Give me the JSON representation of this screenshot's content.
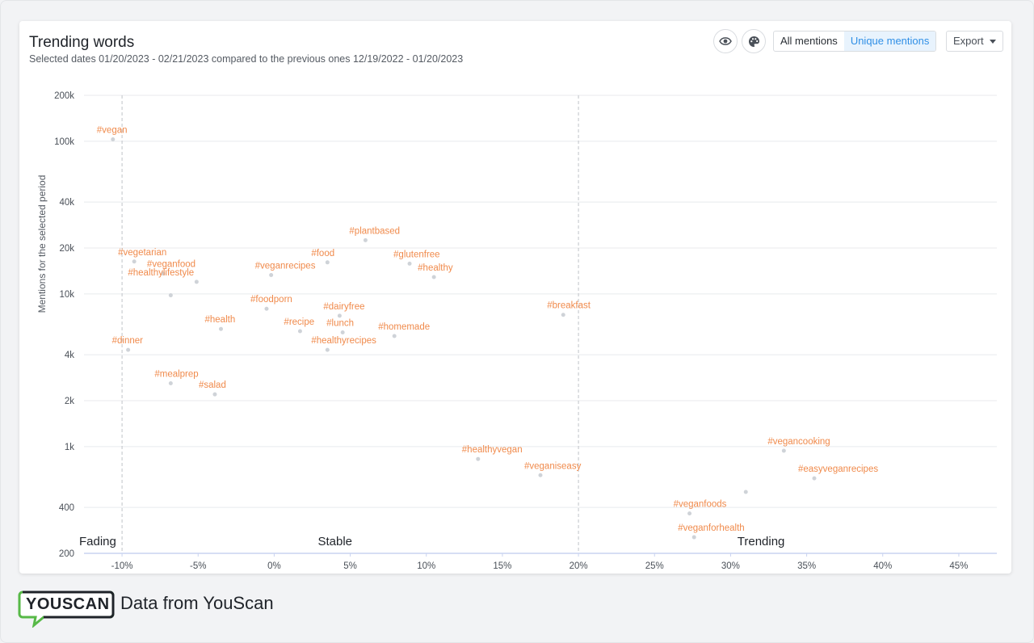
{
  "header": {
    "title": "Trending words",
    "subtitle": "Selected dates 01/20/2023 - 02/21/2023 compared to the previous ones 12/19/2022 - 01/20/2023",
    "icons": [
      "eye-icon",
      "palette-icon"
    ],
    "toggle": {
      "all_label": "All mentions",
      "unique_label": "Unique mentions",
      "active": "unique"
    },
    "export_label": "Export"
  },
  "chart_data": {
    "type": "scatter",
    "ylabel": "Mentions for the selected period",
    "xlabel": "",
    "y_scale": "log",
    "ylim": [
      200,
      200000
    ],
    "xlim": [
      -12.5,
      47.5
    ],
    "yticks": [
      {
        "value": 200000,
        "label": "200k"
      },
      {
        "value": 100000,
        "label": "100k"
      },
      {
        "value": 40000,
        "label": "40k"
      },
      {
        "value": 20000,
        "label": "20k"
      },
      {
        "value": 10000,
        "label": "10k"
      },
      {
        "value": 4000,
        "label": "4k"
      },
      {
        "value": 2000,
        "label": "2k"
      },
      {
        "value": 1000,
        "label": "1k"
      },
      {
        "value": 400,
        "label": "400"
      },
      {
        "value": 200,
        "label": "200"
      }
    ],
    "xticks": [
      {
        "value": -10,
        "label": "-10%"
      },
      {
        "value": -5,
        "label": "-5%"
      },
      {
        "value": 0,
        "label": "0%"
      },
      {
        "value": 5,
        "label": "5%"
      },
      {
        "value": 10,
        "label": "10%"
      },
      {
        "value": 15,
        "label": "15%"
      },
      {
        "value": 20,
        "label": "20%"
      },
      {
        "value": 25,
        "label": "25%"
      },
      {
        "value": 30,
        "label": "30%"
      },
      {
        "value": 35,
        "label": "35%"
      },
      {
        "value": 40,
        "label": "40%"
      },
      {
        "value": 45,
        "label": "45%"
      }
    ],
    "threshold_lines": [
      -10,
      20
    ],
    "zones": [
      {
        "label": "Fading",
        "x": -11.6
      },
      {
        "label": "Stable",
        "x": 4
      },
      {
        "label": "Trending",
        "x": 32
      }
    ],
    "points": [
      {
        "label": "#vegan",
        "x": -10.6,
        "y": 103000
      },
      {
        "label": "#vegetarian",
        "x": -9.2,
        "y": 16300
      },
      {
        "label": "#veganfood",
        "x": -7.3,
        "y": 13600
      },
      {
        "label": "#healthylifestyle",
        "x": -5.1,
        "y": 12000,
        "label_dx": -85
      },
      {
        "label": "#healthylifestyle",
        "x": -6.8,
        "y": 9800,
        "hide_label": true
      },
      {
        "label": "#veganrecipes",
        "x": -0.2,
        "y": 13300
      },
      {
        "label": "#food",
        "x": 3.5,
        "y": 16100
      },
      {
        "label": "#plantbased",
        "x": 6.0,
        "y": 22500
      },
      {
        "label": "#glutenfree",
        "x": 8.9,
        "y": 15800
      },
      {
        "label": "#healthy",
        "x": 10.5,
        "y": 12900
      },
      {
        "label": "#foodporn",
        "x": -0.5,
        "y": 8000
      },
      {
        "label": "#dairyfree",
        "x": 4.3,
        "y": 7200
      },
      {
        "label": "#health",
        "x": -3.5,
        "y": 5900
      },
      {
        "label": "#recipe",
        "x": 1.7,
        "y": 5700
      },
      {
        "label": "#lunch",
        "x": 4.5,
        "y": 5600
      },
      {
        "label": "#homemade",
        "x": 7.9,
        "y": 5300
      },
      {
        "label": "#healthyrecipes",
        "x": 3.5,
        "y": 4300
      },
      {
        "label": "#dinner",
        "x": -9.6,
        "y": 4300
      },
      {
        "label": "#breakfast",
        "x": 19.0,
        "y": 7300
      },
      {
        "label": "#mealprep",
        "x": -6.8,
        "y": 2600
      },
      {
        "label": "#salad",
        "x": -3.9,
        "y": 2200
      },
      {
        "label": "#healthyvegan",
        "x": 13.4,
        "y": 830
      },
      {
        "label": "#veganiseasy",
        "x": 17.5,
        "y": 650
      },
      {
        "label": "#vegancooking",
        "x": 33.5,
        "y": 940
      },
      {
        "label": "#easyveganrecipes",
        "x": 35.5,
        "y": 620
      },
      {
        "label": "#easyveganrecipes",
        "x": 31.0,
        "y": 505,
        "hide_label": true
      },
      {
        "label": "#veganfoods",
        "x": 27.3,
        "y": 365
      },
      {
        "label": "#veganforhealth",
        "x": 27.6,
        "y": 255
      }
    ],
    "colors": {
      "label": "#f08a4b",
      "point": "#cfd3d8",
      "grid": "#e8eaed",
      "threshold": "#bfc3c8",
      "axis": "#c9d3f0"
    }
  },
  "footer": {
    "brand": "YOUSCAN",
    "text": "Data from YouScan",
    "brand_color": "#57b947"
  }
}
